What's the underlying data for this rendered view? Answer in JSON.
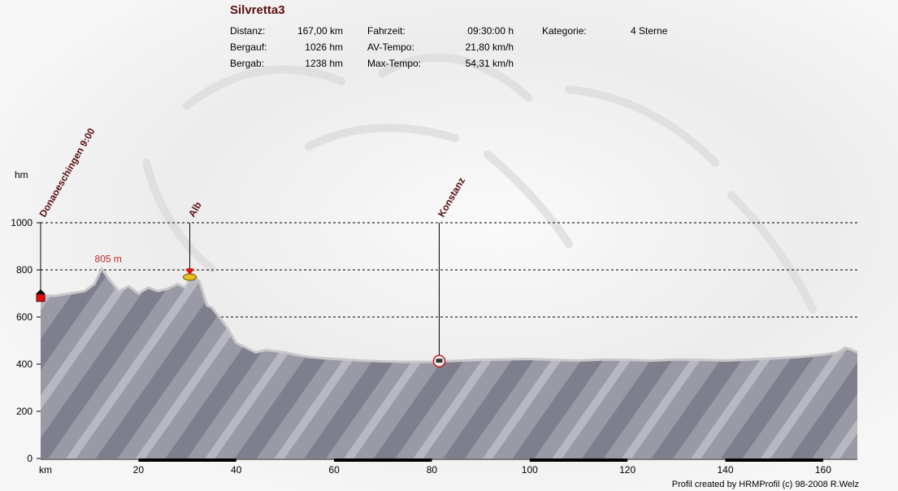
{
  "header": {
    "title": "Silvretta3",
    "stats": {
      "distanz_label": "Distanz:",
      "distanz_value": "167,00 km",
      "bergauf_label": "Bergauf:",
      "bergauf_value": "1026 hm",
      "bergab_label": "Bergab:",
      "bergab_value": "1238 hm",
      "fahrzeit_label": "Fahrzeit:",
      "fahrzeit_value": "09:30:00 h",
      "avtempo_label": "AV-Tempo:",
      "avtempo_value": "21,80 km/h",
      "maxtempo_label": "Max-Tempo:",
      "maxtempo_value": "54,31 km/h",
      "kategorie_label": "Kategorie:",
      "kategorie_value": "4 Sterne"
    }
  },
  "footer": {
    "credit": "Profil created by HRMProfil (c) 98-2008 R.Welz"
  },
  "colors": {
    "title": "#5a1010",
    "waypoint_label": "#5a1010",
    "max_label": "#c0282c",
    "profile_fill": "#9a9aa6",
    "profile_dark": "#5a5a6e",
    "profile_edge": "#c8c8cc"
  },
  "chart_data": {
    "type": "area",
    "title": "Silvretta3",
    "xlabel": "km",
    "ylabel": "hm",
    "xlim": [
      0,
      167
    ],
    "ylim": [
      0,
      1000
    ],
    "x_ticks": [
      20,
      40,
      60,
      80,
      100,
      120,
      140,
      160
    ],
    "y_ticks": [
      0,
      200,
      400,
      600,
      800,
      1000
    ],
    "grid": "horizontal dashed",
    "profile": {
      "x": [
        0,
        3,
        6,
        9,
        11,
        12.5,
        14,
        16,
        18,
        20,
        22,
        24,
        26,
        28,
        29.5,
        31,
        32.5,
        34,
        35,
        36.5,
        38,
        40,
        42,
        44,
        46,
        48,
        50,
        52,
        55,
        58,
        62,
        66,
        70,
        74,
        78,
        80,
        82,
        86,
        90,
        95,
        100,
        105,
        110,
        115,
        120,
        125,
        130,
        135,
        140,
        145,
        150,
        155,
        160,
        163,
        164.5,
        166,
        167
      ],
      "y": [
        690,
        690,
        700,
        710,
        740,
        805,
        760,
        710,
        730,
        700,
        725,
        710,
        720,
        740,
        725,
        780,
        750,
        650,
        640,
        600,
        560,
        490,
        470,
        450,
        460,
        455,
        450,
        440,
        430,
        425,
        420,
        415,
        412,
        410,
        410,
        410,
        412,
        415,
        418,
        420,
        422,
        418,
        415,
        420,
        418,
        415,
        420,
        418,
        415,
        420,
        425,
        430,
        440,
        450,
        470,
        460,
        450
      ]
    },
    "max_label": "805 m",
    "max_point": {
      "x": 12.5,
      "y": 805
    },
    "waypoints": [
      {
        "name": "Donaoeschingen 9:00",
        "x": 0,
        "y": 680
      },
      {
        "name": "Alb",
        "x": 30.5,
        "y": 790
      },
      {
        "name": "Konstanz",
        "x": 81.5,
        "y": 420
      }
    ]
  }
}
